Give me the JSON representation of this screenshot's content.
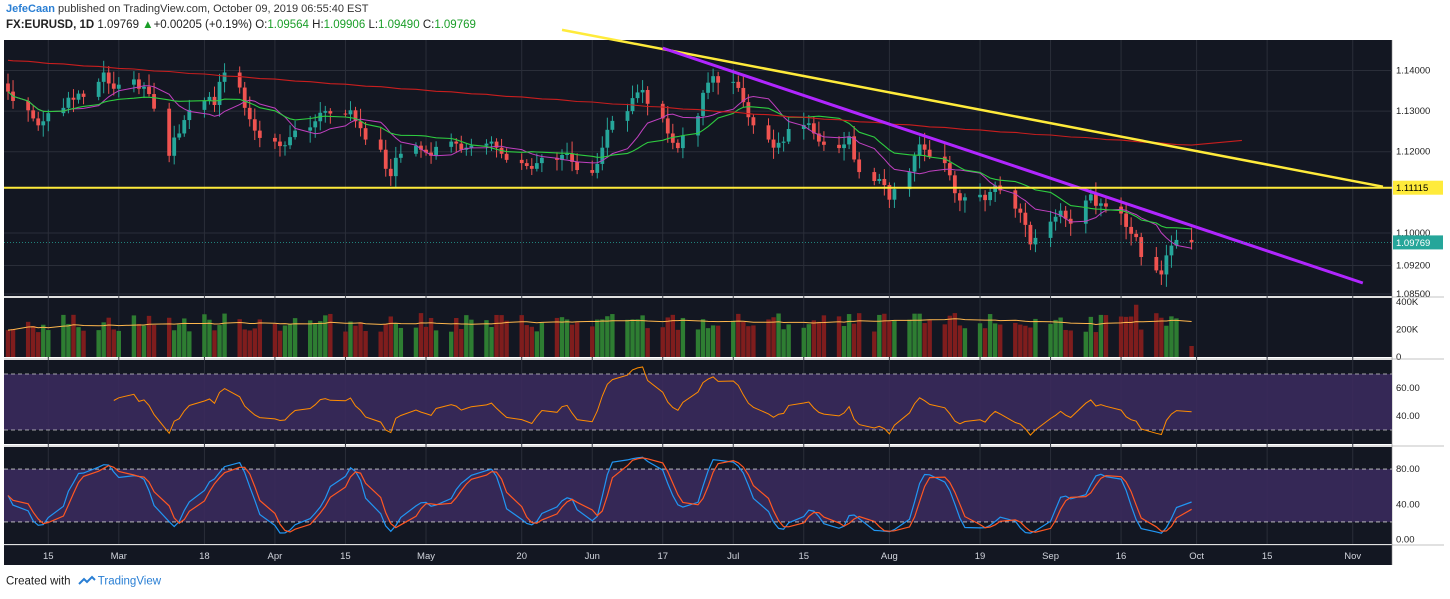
{
  "header": {
    "author": "JefeCaan",
    "published_text": "published on TradingView.com, October 09, 2019 06:55:40 EST",
    "symbol": "FX:EURUSD, 1D",
    "last": "1.09769",
    "change_arrow": "▲",
    "change": "+0.00205 (+0.19%)",
    "o_label": "O:",
    "o_value": "1.09564",
    "h_label": "H:",
    "h_value": "1.09906",
    "l_label": "L:",
    "l_value": "1.09490",
    "c_label": "C:",
    "c_value": "1.09769"
  },
  "footer": {
    "created_with": "Created with",
    "brand": "TradingView",
    "logo_icon": "tradingview-logo-icon"
  },
  "colors": {
    "background": "#131722",
    "up": "#26a69a",
    "down": "#ef5350",
    "ma_green": "#2ecc40",
    "ma_red": "#c81e1e",
    "ma_magenta": "#c040c0",
    "trend_yellow": "#ffeb3b",
    "trend_purple": "#b026ff",
    "rsi_line": "#ff8c00",
    "stoch_k": "#2196f3",
    "stoch_d": "#ff5722",
    "indicator_band": "#3a2a5c"
  },
  "chart_data": [
    {
      "type": "candlestick",
      "title": "FX:EURUSD, 1D",
      "x_start": "2019-02-07",
      "x_labels": [
        "15",
        "Mar",
        "18",
        "Apr",
        "15",
        "May",
        "20",
        "Jun",
        "17",
        "Jul",
        "15",
        "Aug",
        "19",
        "Sep",
        "16",
        "Oct",
        "15",
        "Nov"
      ],
      "x_tick_dates": [
        "2019-02-15",
        "2019-03-01",
        "2019-03-18",
        "2019-04-01",
        "2019-04-15",
        "2019-05-01",
        "2019-05-20",
        "2019-06-03",
        "2019-06-17",
        "2019-07-01",
        "2019-07-15",
        "2019-08-01",
        "2019-08-19",
        "2019-09-02",
        "2019-09-16",
        "2019-10-01",
        "2019-10-15",
        "2019-11-01"
      ],
      "y_ticks": [
        "1.14000",
        "1.13000",
        "1.12000",
        "1.10000",
        "1.09200",
        "1.08500"
      ],
      "ylim": [
        1.0845,
        1.1475
      ],
      "close_series": [
        1.1348,
        1.1325,
        1.1302,
        1.1282,
        1.1265,
        1.1275,
        1.1295,
        1.1308,
        1.1333,
        1.1328,
        1.1343,
        1.1335,
        1.1372,
        1.1395,
        1.1368,
        1.1355,
        1.1365,
        1.1378,
        1.1355,
        1.136,
        1.1342,
        1.1306,
        1.119,
        1.1235,
        1.1245,
        1.1278,
        1.1303,
        1.1325,
        1.1335,
        1.1315,
        1.1372,
        1.1395,
        1.1358,
        1.1308,
        1.128,
        1.1252,
        1.1234,
        1.1225,
        1.1214,
        1.1216,
        1.1236,
        1.1252,
        1.126,
        1.1275,
        1.1296,
        1.13,
        1.1294,
        1.1292,
        1.1302,
        1.1275,
        1.1258,
        1.123,
        1.1205,
        1.1158,
        1.114,
        1.1185,
        1.1195,
        1.1215,
        1.1205,
        1.1198,
        1.119,
        1.1212,
        1.1225,
        1.122,
        1.1205,
        1.121,
        1.1215,
        1.122,
        1.1225,
        1.121,
        1.1195,
        1.118,
        1.1172,
        1.1165,
        1.1158,
        1.1172,
        1.1185,
        1.118,
        1.1192,
        1.1195,
        1.1175,
        1.1155,
        1.1148,
        1.117,
        1.121,
        1.1254,
        1.1276,
        1.13,
        1.1332,
        1.1346,
        1.1352,
        1.1318,
        1.1282,
        1.1245,
        1.1222,
        1.1209,
        1.124,
        1.1288,
        1.1345,
        1.137,
        1.1386,
        1.137,
        1.1372,
        1.1357,
        1.1322,
        1.1285,
        1.1265,
        1.123,
        1.121,
        1.1222,
        1.1225,
        1.1256,
        1.1266,
        1.127,
        1.1245,
        1.1225,
        1.1217,
        1.1209,
        1.1218,
        1.1238,
        1.1181,
        1.115,
        1.1128,
        1.1133,
        1.1118,
        1.1082,
        1.1108,
        1.1151,
        1.119,
        1.1218,
        1.1205,
        1.1188,
        1.1172,
        1.1142,
        1.1098,
        1.108,
        1.1088,
        1.1094,
        1.1081,
        1.1101,
        1.1117,
        1.1105,
        1.106,
        1.105,
        1.102,
        1.0972,
        1.0988,
        1.1028,
        1.104,
        1.1055,
        1.1035,
        1.1023,
        1.108,
        1.1095,
        1.1067,
        1.1073,
        1.1065,
        1.1048,
        1.1015,
        1.0998,
        1.099,
        1.0941,
        1.0908,
        1.0898,
        1.0945,
        1.0969,
        1.0983,
        1.0977
      ]
    },
    {
      "type": "bar",
      "title": "Volume",
      "y_ticks": [
        "400K",
        "200K",
        "0"
      ],
      "ylim": [
        0,
        400000
      ]
    },
    {
      "type": "line",
      "title": "RSI",
      "y_ticks": [
        "60.00",
        "40.00"
      ],
      "bands": [
        70,
        30
      ],
      "ylim": [
        20,
        80
      ]
    },
    {
      "type": "line",
      "title": "Stochastic",
      "series": [
        {
          "values": []
        },
        {
          "values": []
        }
      ],
      "y_ticks": [
        "80.00",
        "40.00",
        "0.00"
      ],
      "bands": [
        80,
        20
      ],
      "ylim": [
        -5,
        105
      ]
    }
  ],
  "trendlines": {
    "horizontal_label": "1.11115",
    "horizontal_value": 1.11115,
    "last_price_label": "1.09769",
    "last_price_value": 1.09769,
    "yellow_line": {
      "start_date": "2019-05-28",
      "start_price": 1.15,
      "end_date": "2019-11-07",
      "end_price": 1.1114
    },
    "purple_line": {
      "start_date": "2019-06-17",
      "start_price": 1.1455,
      "end_date": "2019-11-03",
      "end_price": 1.0877
    }
  }
}
